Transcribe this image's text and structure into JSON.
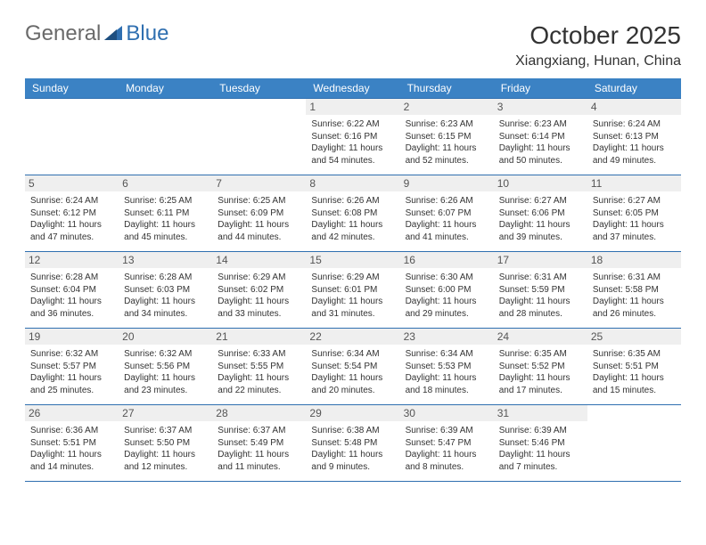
{
  "logo": {
    "text_a": "General",
    "text_b": "Blue"
  },
  "header": {
    "month": "October 2025",
    "location": "Xiangxiang, Hunan, China"
  },
  "calendar": {
    "header_bg": "#3b82c4",
    "header_fg": "#ffffff",
    "border_color": "#2f6fb0",
    "daynum_bg": "#efefef",
    "columns": [
      "Sunday",
      "Monday",
      "Tuesday",
      "Wednesday",
      "Thursday",
      "Friday",
      "Saturday"
    ],
    "weeks": [
      [
        {
          "empty": true
        },
        {
          "empty": true
        },
        {
          "empty": true
        },
        {
          "day": "1",
          "sunrise": "Sunrise: 6:22 AM",
          "sunset": "Sunset: 6:16 PM",
          "daylight": "Daylight: 11 hours and 54 minutes."
        },
        {
          "day": "2",
          "sunrise": "Sunrise: 6:23 AM",
          "sunset": "Sunset: 6:15 PM",
          "daylight": "Daylight: 11 hours and 52 minutes."
        },
        {
          "day": "3",
          "sunrise": "Sunrise: 6:23 AM",
          "sunset": "Sunset: 6:14 PM",
          "daylight": "Daylight: 11 hours and 50 minutes."
        },
        {
          "day": "4",
          "sunrise": "Sunrise: 6:24 AM",
          "sunset": "Sunset: 6:13 PM",
          "daylight": "Daylight: 11 hours and 49 minutes."
        }
      ],
      [
        {
          "day": "5",
          "sunrise": "Sunrise: 6:24 AM",
          "sunset": "Sunset: 6:12 PM",
          "daylight": "Daylight: 11 hours and 47 minutes."
        },
        {
          "day": "6",
          "sunrise": "Sunrise: 6:25 AM",
          "sunset": "Sunset: 6:11 PM",
          "daylight": "Daylight: 11 hours and 45 minutes."
        },
        {
          "day": "7",
          "sunrise": "Sunrise: 6:25 AM",
          "sunset": "Sunset: 6:09 PM",
          "daylight": "Daylight: 11 hours and 44 minutes."
        },
        {
          "day": "8",
          "sunrise": "Sunrise: 6:26 AM",
          "sunset": "Sunset: 6:08 PM",
          "daylight": "Daylight: 11 hours and 42 minutes."
        },
        {
          "day": "9",
          "sunrise": "Sunrise: 6:26 AM",
          "sunset": "Sunset: 6:07 PM",
          "daylight": "Daylight: 11 hours and 41 minutes."
        },
        {
          "day": "10",
          "sunrise": "Sunrise: 6:27 AM",
          "sunset": "Sunset: 6:06 PM",
          "daylight": "Daylight: 11 hours and 39 minutes."
        },
        {
          "day": "11",
          "sunrise": "Sunrise: 6:27 AM",
          "sunset": "Sunset: 6:05 PM",
          "daylight": "Daylight: 11 hours and 37 minutes."
        }
      ],
      [
        {
          "day": "12",
          "sunrise": "Sunrise: 6:28 AM",
          "sunset": "Sunset: 6:04 PM",
          "daylight": "Daylight: 11 hours and 36 minutes."
        },
        {
          "day": "13",
          "sunrise": "Sunrise: 6:28 AM",
          "sunset": "Sunset: 6:03 PM",
          "daylight": "Daylight: 11 hours and 34 minutes."
        },
        {
          "day": "14",
          "sunrise": "Sunrise: 6:29 AM",
          "sunset": "Sunset: 6:02 PM",
          "daylight": "Daylight: 11 hours and 33 minutes."
        },
        {
          "day": "15",
          "sunrise": "Sunrise: 6:29 AM",
          "sunset": "Sunset: 6:01 PM",
          "daylight": "Daylight: 11 hours and 31 minutes."
        },
        {
          "day": "16",
          "sunrise": "Sunrise: 6:30 AM",
          "sunset": "Sunset: 6:00 PM",
          "daylight": "Daylight: 11 hours and 29 minutes."
        },
        {
          "day": "17",
          "sunrise": "Sunrise: 6:31 AM",
          "sunset": "Sunset: 5:59 PM",
          "daylight": "Daylight: 11 hours and 28 minutes."
        },
        {
          "day": "18",
          "sunrise": "Sunrise: 6:31 AM",
          "sunset": "Sunset: 5:58 PM",
          "daylight": "Daylight: 11 hours and 26 minutes."
        }
      ],
      [
        {
          "day": "19",
          "sunrise": "Sunrise: 6:32 AM",
          "sunset": "Sunset: 5:57 PM",
          "daylight": "Daylight: 11 hours and 25 minutes."
        },
        {
          "day": "20",
          "sunrise": "Sunrise: 6:32 AM",
          "sunset": "Sunset: 5:56 PM",
          "daylight": "Daylight: 11 hours and 23 minutes."
        },
        {
          "day": "21",
          "sunrise": "Sunrise: 6:33 AM",
          "sunset": "Sunset: 5:55 PM",
          "daylight": "Daylight: 11 hours and 22 minutes."
        },
        {
          "day": "22",
          "sunrise": "Sunrise: 6:34 AM",
          "sunset": "Sunset: 5:54 PM",
          "daylight": "Daylight: 11 hours and 20 minutes."
        },
        {
          "day": "23",
          "sunrise": "Sunrise: 6:34 AM",
          "sunset": "Sunset: 5:53 PM",
          "daylight": "Daylight: 11 hours and 18 minutes."
        },
        {
          "day": "24",
          "sunrise": "Sunrise: 6:35 AM",
          "sunset": "Sunset: 5:52 PM",
          "daylight": "Daylight: 11 hours and 17 minutes."
        },
        {
          "day": "25",
          "sunrise": "Sunrise: 6:35 AM",
          "sunset": "Sunset: 5:51 PM",
          "daylight": "Daylight: 11 hours and 15 minutes."
        }
      ],
      [
        {
          "day": "26",
          "sunrise": "Sunrise: 6:36 AM",
          "sunset": "Sunset: 5:51 PM",
          "daylight": "Daylight: 11 hours and 14 minutes."
        },
        {
          "day": "27",
          "sunrise": "Sunrise: 6:37 AM",
          "sunset": "Sunset: 5:50 PM",
          "daylight": "Daylight: 11 hours and 12 minutes."
        },
        {
          "day": "28",
          "sunrise": "Sunrise: 6:37 AM",
          "sunset": "Sunset: 5:49 PM",
          "daylight": "Daylight: 11 hours and 11 minutes."
        },
        {
          "day": "29",
          "sunrise": "Sunrise: 6:38 AM",
          "sunset": "Sunset: 5:48 PM",
          "daylight": "Daylight: 11 hours and 9 minutes."
        },
        {
          "day": "30",
          "sunrise": "Sunrise: 6:39 AM",
          "sunset": "Sunset: 5:47 PM",
          "daylight": "Daylight: 11 hours and 8 minutes."
        },
        {
          "day": "31",
          "sunrise": "Sunrise: 6:39 AM",
          "sunset": "Sunset: 5:46 PM",
          "daylight": "Daylight: 11 hours and 7 minutes."
        },
        {
          "empty": true
        }
      ]
    ]
  }
}
